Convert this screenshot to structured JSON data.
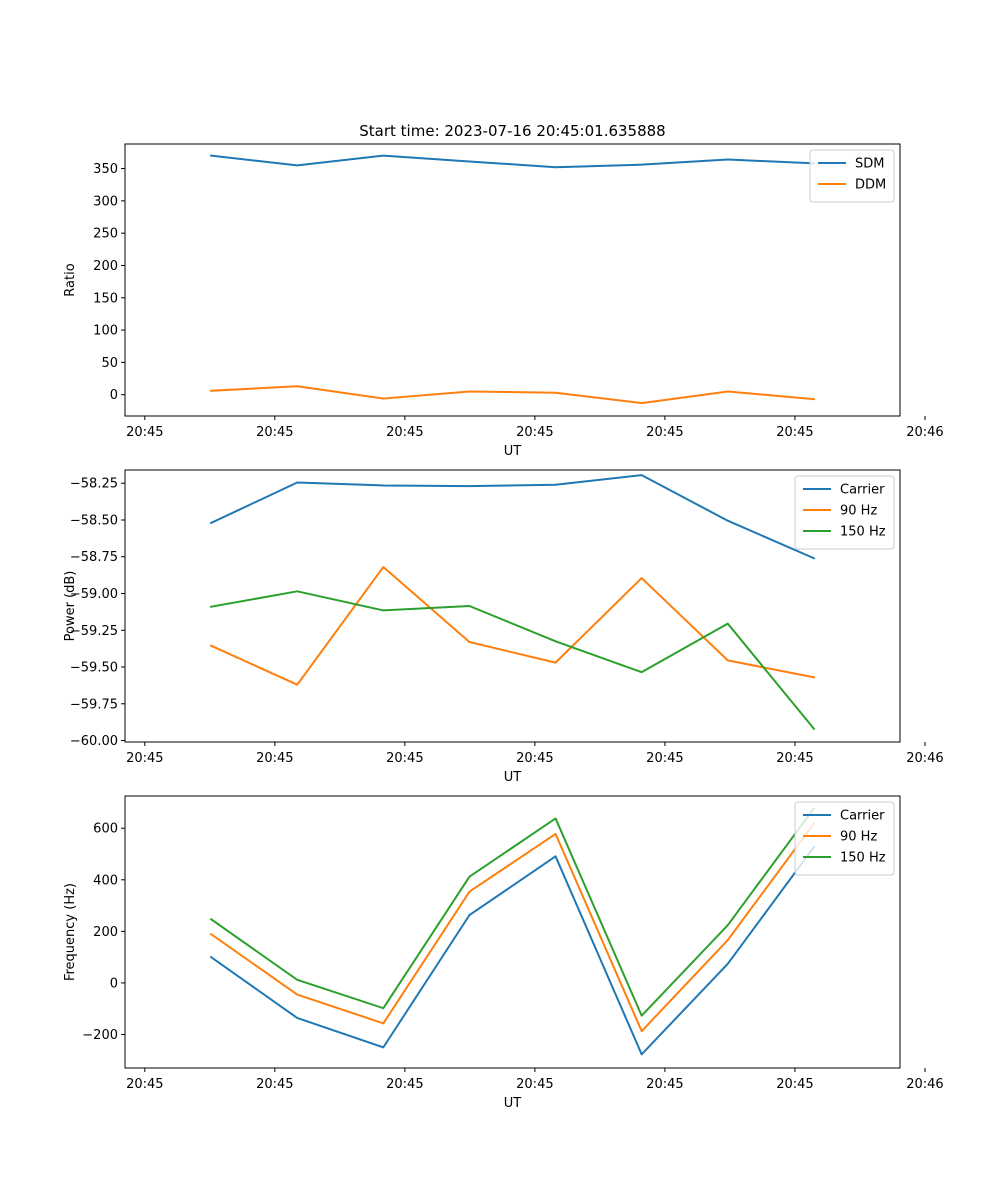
{
  "figure_title": "Start time: 2023-07-16 20:45:01.635888",
  "chart_data": [
    {
      "type": "line",
      "title": "Start time: 2023-07-16 20:45:01.635888",
      "xlabel": "UT",
      "ylabel": "Ratio",
      "xlim": [
        0,
        9
      ],
      "ylim": [
        -33,
        388
      ],
      "x_ticks": [
        0.23,
        1.74,
        3.25,
        4.76,
        6.27,
        7.78,
        9.29
      ],
      "x_tick_labels": [
        "20:45",
        "20:45",
        "20:45",
        "20:45",
        "20:45",
        "20:45",
        "20:46"
      ],
      "y_ticks": [
        0,
        50,
        100,
        150,
        200,
        250,
        300,
        350
      ],
      "y_tick_labels": [
        "0",
        "50",
        "100",
        "150",
        "200",
        "250",
        "300",
        "350"
      ],
      "x": [
        1,
        2,
        3,
        4,
        5,
        6,
        7,
        8
      ],
      "series": [
        {
          "name": "SDM",
          "color": "#1f77b4",
          "values": [
            370,
            355,
            370,
            361,
            352,
            356,
            364,
            358
          ]
        },
        {
          "name": "DDM",
          "color": "#ff7f0e",
          "values": [
            6,
            13,
            -6,
            5,
            3,
            -13,
            5,
            -7
          ]
        }
      ],
      "legend": "top-right"
    },
    {
      "type": "line",
      "title": "",
      "xlabel": "UT",
      "ylabel": "Power (dB)",
      "xlim": [
        0,
        9
      ],
      "ylim": [
        -60.01,
        -58.16
      ],
      "x_ticks": [
        0.23,
        1.74,
        3.25,
        4.76,
        6.27,
        7.78,
        9.29
      ],
      "x_tick_labels": [
        "20:45",
        "20:45",
        "20:45",
        "20:45",
        "20:45",
        "20:45",
        "20:46"
      ],
      "y_ticks": [
        -58.25,
        -58.5,
        -58.75,
        -59.0,
        -59.25,
        -59.5,
        -59.75,
        -60.0
      ],
      "y_tick_labels": [
        "−58.25",
        "−58.50",
        "−58.75",
        "−59.00",
        "−59.25",
        "−59.50",
        "−59.75",
        "−60.00"
      ],
      "x": [
        1,
        2,
        3,
        4,
        5,
        6,
        7,
        8
      ],
      "series": [
        {
          "name": "Carrier",
          "color": "#1f77b4",
          "values": [
            -58.52,
            -58.245,
            -58.265,
            -58.27,
            -58.26,
            -58.195,
            -58.505,
            -58.76
          ]
        },
        {
          "name": "90 Hz",
          "color": "#ff7f0e",
          "values": [
            -59.355,
            -59.62,
            -58.82,
            -59.33,
            -59.47,
            -58.895,
            -59.455,
            -59.57
          ]
        },
        {
          "name": "150 Hz",
          "color": "#2ca02c",
          "values": [
            -59.09,
            -58.985,
            -59.115,
            -59.085,
            -59.325,
            -59.535,
            -59.205,
            -59.92
          ]
        }
      ],
      "legend": "top-right"
    },
    {
      "type": "line",
      "title": "",
      "xlabel": "UT",
      "ylabel": "Frequency (Hz)",
      "xlim": [
        0,
        9
      ],
      "ylim": [
        -330,
        725
      ],
      "x_ticks": [
        0.23,
        1.74,
        3.25,
        4.76,
        6.27,
        7.78,
        9.29
      ],
      "x_tick_labels": [
        "20:45",
        "20:45",
        "20:45",
        "20:45",
        "20:45",
        "20:45",
        "20:46"
      ],
      "y_ticks": [
        -200,
        0,
        200,
        400,
        600
      ],
      "y_tick_labels": [
        "−200",
        "0",
        "200",
        "400",
        "600"
      ],
      "x": [
        1,
        2,
        3,
        4,
        5,
        6,
        7,
        8
      ],
      "series": [
        {
          "name": "Carrier",
          "color": "#1f77b4",
          "values": [
            100,
            -136,
            -250,
            263,
            491,
            -277,
            74,
            527
          ]
        },
        {
          "name": "90 Hz",
          "color": "#ff7f0e",
          "values": [
            189,
            -45,
            -157,
            354,
            578,
            -187,
            166,
            618
          ]
        },
        {
          "name": "150 Hz",
          "color": "#2ca02c",
          "values": [
            247,
            12,
            -98,
            412,
            638,
            -127,
            224,
            677
          ]
        }
      ],
      "legend": "top-right"
    }
  ]
}
